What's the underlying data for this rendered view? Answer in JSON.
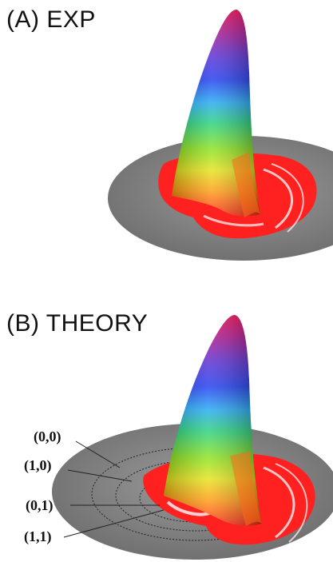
{
  "panels": [
    {
      "id": "A",
      "title": "(A) EXP"
    },
    {
      "id": "B",
      "title": "(B) THEORY"
    }
  ],
  "mode_labels": [
    "(0,0)",
    "(1,0)",
    "(0,1)",
    "(1,1)"
  ],
  "colors": {
    "disk": "#8a8a8a",
    "disk_edge": "#6f6f6f",
    "base_red": "#ff1a1a",
    "gradient": [
      "#e8004a",
      "#b0108a",
      "#5a2bd0",
      "#1e3cf0",
      "#22a8f2",
      "#27d07c",
      "#8ee21c",
      "#e6e21a",
      "#ff9a12",
      "#ff2a12"
    ]
  }
}
